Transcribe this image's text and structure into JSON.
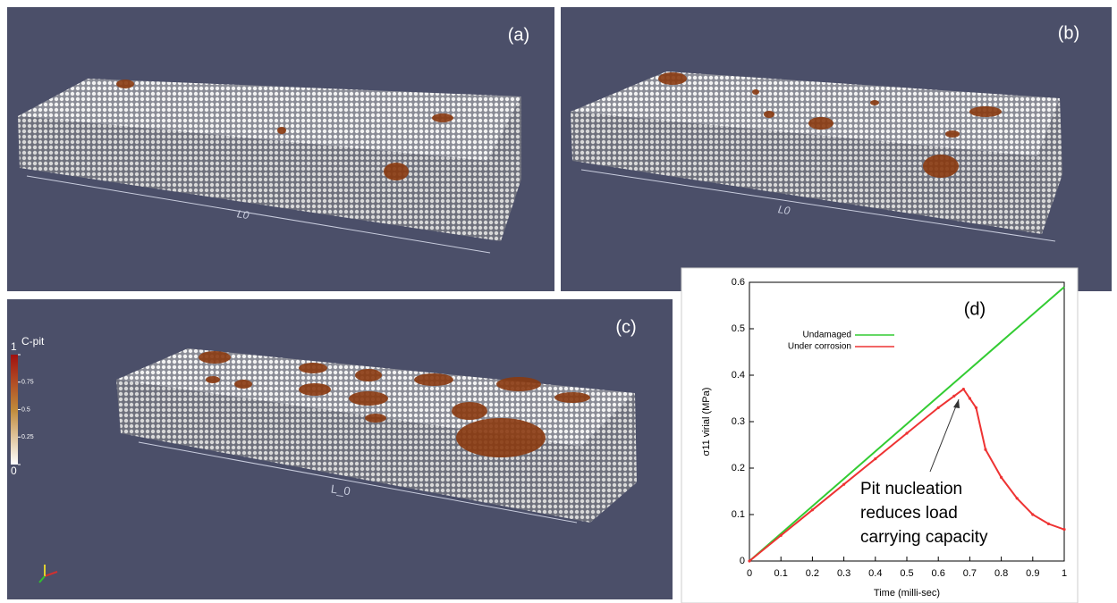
{
  "panels": [
    {
      "label": "(a)",
      "length_label": "L0"
    },
    {
      "label": "(b)",
      "length_label": "L0"
    },
    {
      "label": "(c)",
      "length_label": "L_0"
    }
  ],
  "colorbar": {
    "title": "C-pit",
    "ticks": [
      0,
      0.25,
      0.5,
      0.75,
      1
    ]
  },
  "chart_data": {
    "type": "line",
    "label": "(d)",
    "x_label": "Time (milli-sec)",
    "y_label": "σ11 virial (MPa)",
    "xlim": [
      0,
      1
    ],
    "ylim": [
      0,
      0.6
    ],
    "xticks": [
      0,
      0.1,
      0.2,
      0.3,
      0.4,
      0.5,
      0.6,
      0.7,
      0.8,
      0.9,
      1
    ],
    "yticks": [
      0,
      0.1,
      0.2,
      0.3,
      0.4,
      0.5,
      0.6
    ],
    "series": [
      {
        "name": "Undamaged",
        "color": "#33cc33",
        "x": [
          0,
          0.1,
          0.2,
          0.3,
          0.4,
          0.5,
          0.6,
          0.7,
          0.8,
          0.9,
          1
        ],
        "values": [
          0,
          0.059,
          0.118,
          0.177,
          0.236,
          0.295,
          0.354,
          0.413,
          0.472,
          0.531,
          0.59
        ]
      },
      {
        "name": "Under corrosion",
        "color": "#ee3333",
        "x": [
          0,
          0.1,
          0.2,
          0.3,
          0.4,
          0.5,
          0.6,
          0.65,
          0.68,
          0.7,
          0.72,
          0.75,
          0.8,
          0.85,
          0.9,
          0.95,
          1
        ],
        "values": [
          0,
          0.055,
          0.11,
          0.165,
          0.22,
          0.275,
          0.33,
          0.355,
          0.37,
          0.35,
          0.33,
          0.24,
          0.18,
          0.135,
          0.1,
          0.08,
          0.068
        ]
      }
    ],
    "annotation": [
      "Pit nucleation",
      "reduces load",
      "carrying capacity"
    ]
  }
}
